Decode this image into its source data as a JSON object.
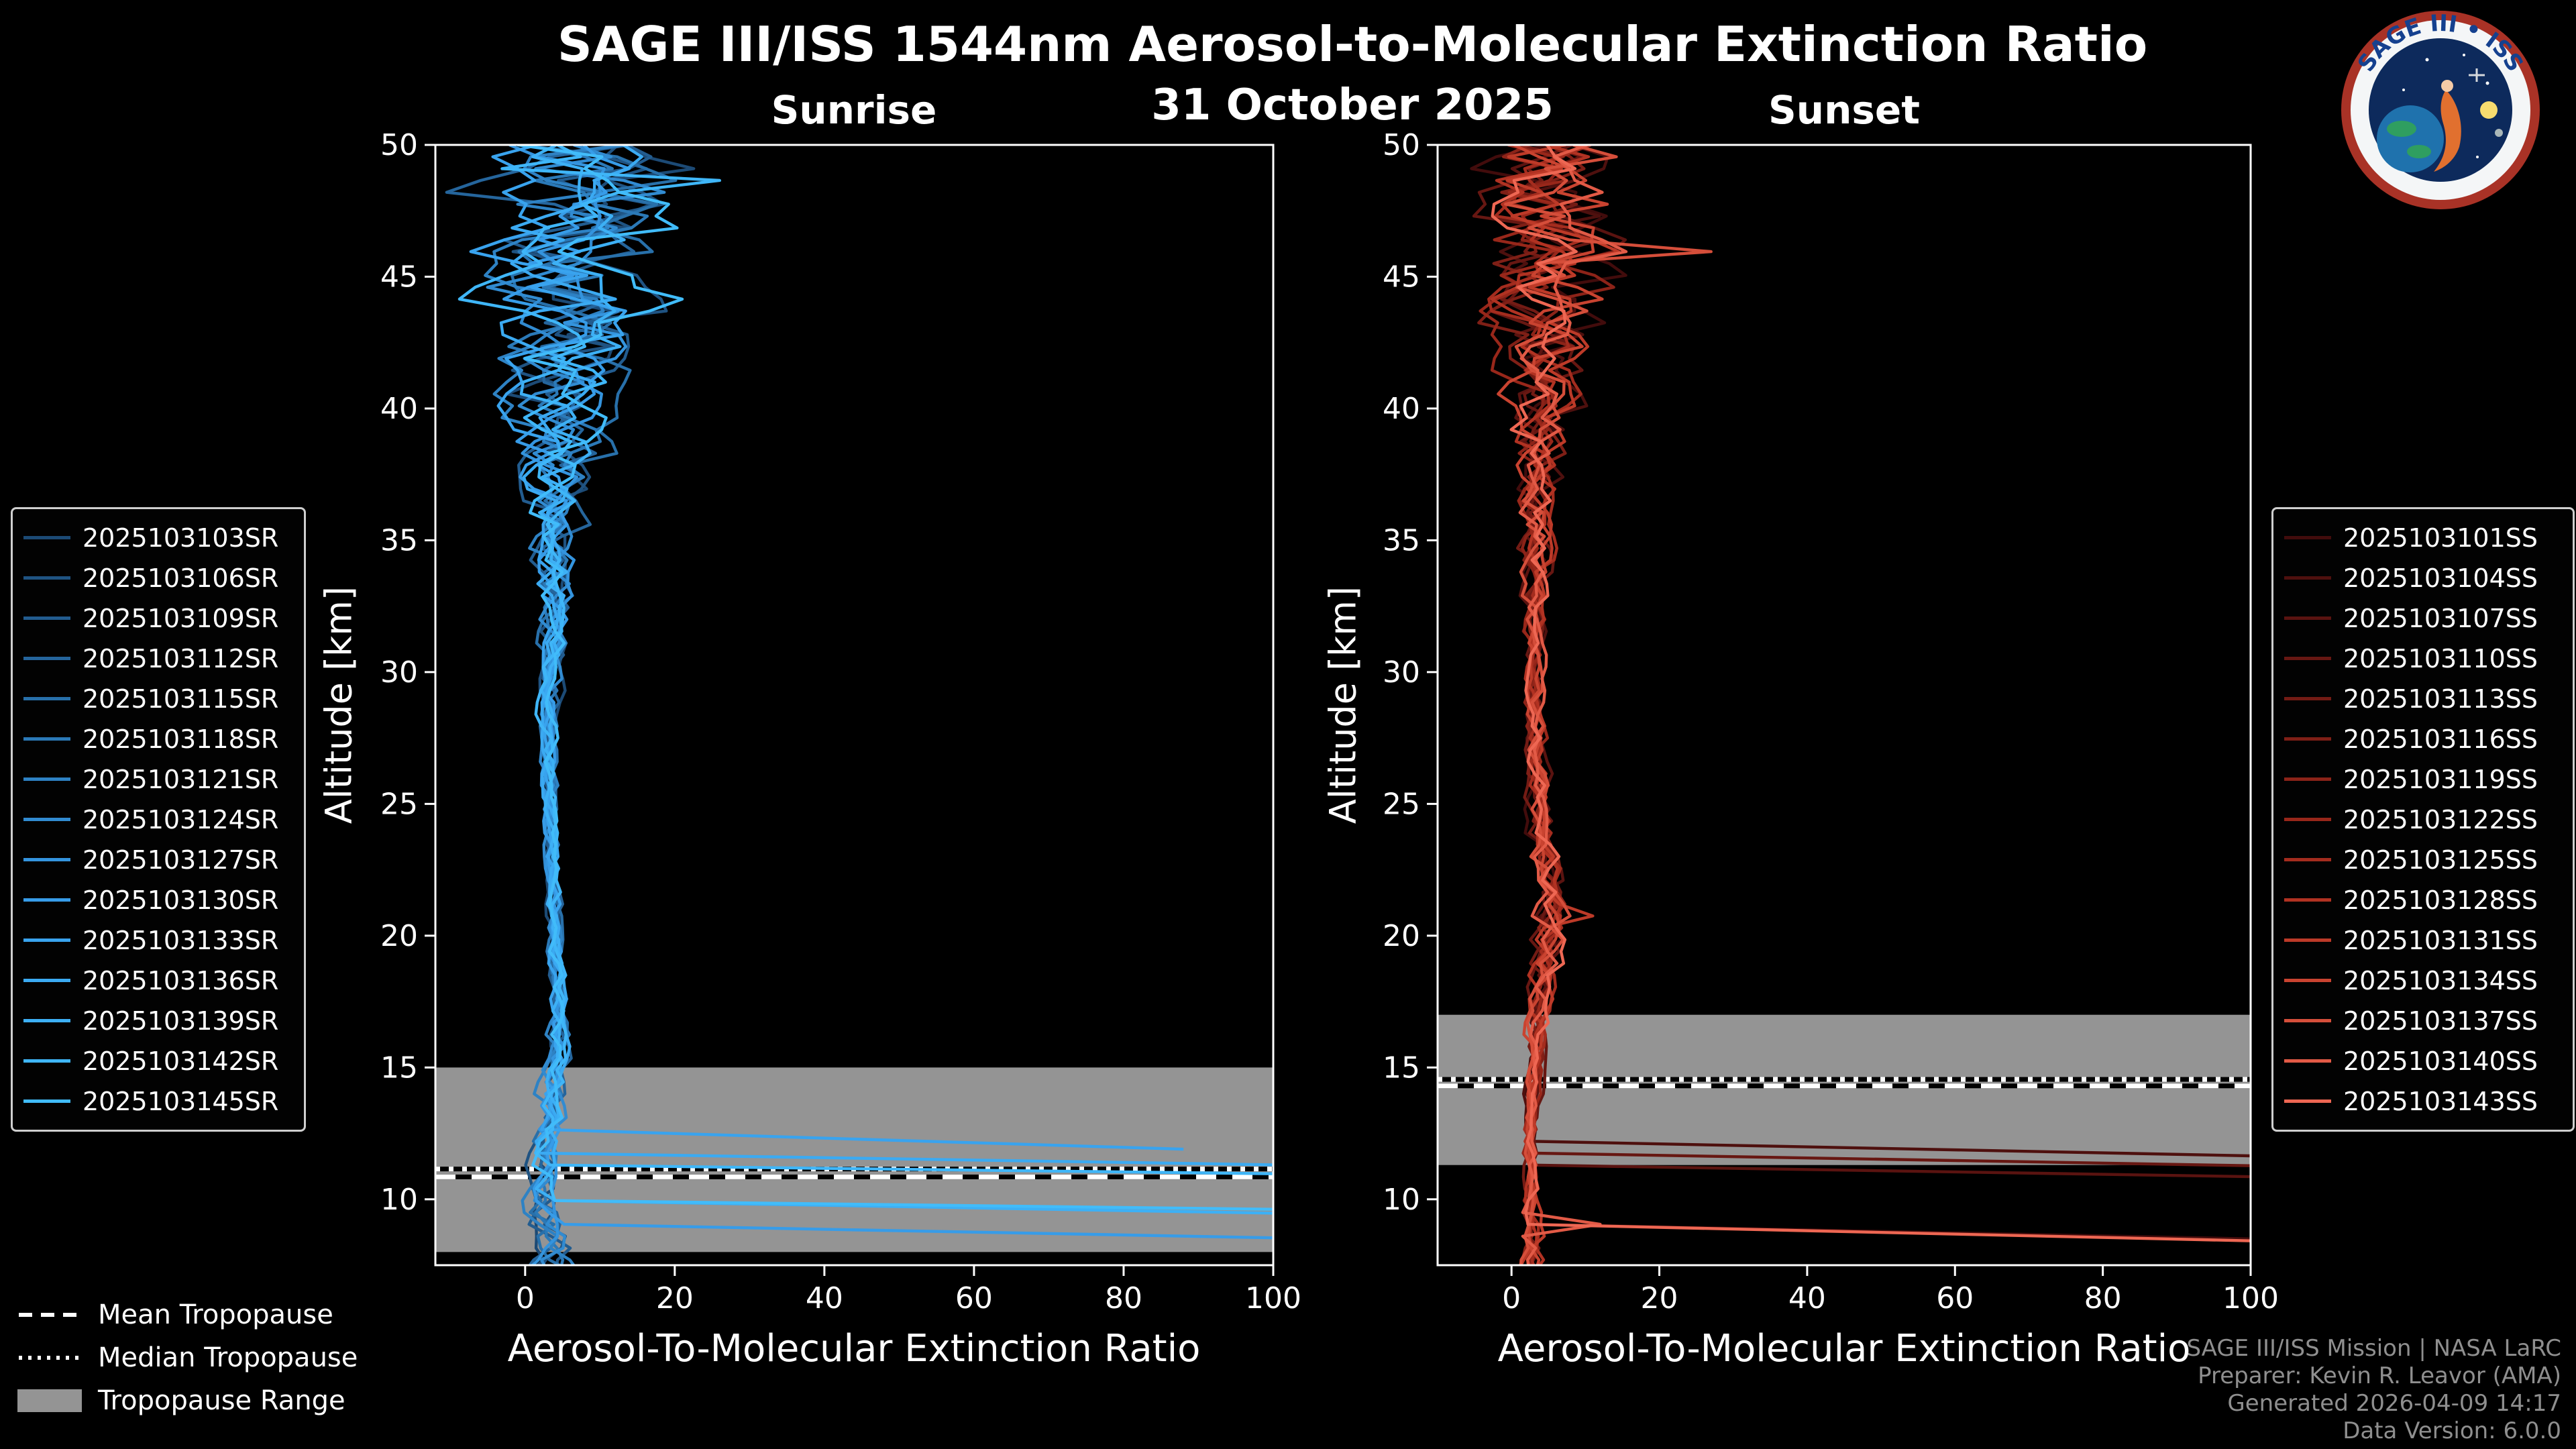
{
  "page": {
    "title": "SAGE III/ISS 1544nm Aerosol-to-Molecular Extinction Ratio",
    "date": "31 October 2025"
  },
  "logo": {
    "arc_text": "SAGE III • ISS"
  },
  "credits": {
    "line1": "SAGE III/ISS Mission | NASA LaRC",
    "line2": "Preparer: Kevin R. Leavor (AMA)",
    "line3": "Generated 2026-04-09 14:17",
    "line4": "Data Version: 6.0.0"
  },
  "tropopause_legend": {
    "mean": "Mean Tropopause",
    "median": "Median Tropopause",
    "range": "Tropopause Range"
  },
  "style": {
    "background": "#000000",
    "text": "#ffffff",
    "frame": "#ffffff"
  },
  "chart_data": [
    {
      "id": "sunrise",
      "type": "line",
      "title": "Sunrise",
      "xlabel": "Aerosol-To-Molecular Extinction Ratio",
      "ylabel": "Altitude [km]",
      "xlim": [
        -12,
        100
      ],
      "ylim": [
        7.5,
        50
      ],
      "xticks": [
        0,
        20,
        40,
        60,
        80,
        100
      ],
      "yticks": [
        10,
        15,
        20,
        25,
        30,
        35,
        40,
        45,
        50
      ],
      "grid": false,
      "legend_position": "outside-left",
      "frame_color": "#ffffff",
      "tropopause": {
        "mean_km": 10.85,
        "median_km": 11.15,
        "range_km": [
          8.0,
          15.0
        ],
        "band_color": "#949494"
      },
      "series": [
        {
          "name": "2025103103SR",
          "color": "#1c4a75"
        },
        {
          "name": "2025103106SR",
          "color": "#1f5382"
        },
        {
          "name": "2025103109SR",
          "color": "#225c8f"
        },
        {
          "name": "2025103112SR",
          "color": "#25659c"
        },
        {
          "name": "2025103115SR",
          "color": "#2870aa"
        },
        {
          "name": "2025103118SR",
          "color": "#2b79b7"
        },
        {
          "name": "2025103121SR",
          "color": "#2e82c4"
        },
        {
          "name": "2025103124SR",
          "color": "#318bd1"
        },
        {
          "name": "2025103127SR",
          "color": "#3494de"
        },
        {
          "name": "2025103130SR",
          "color": "#379ce8"
        },
        {
          "name": "2025103133SR",
          "color": "#39a3ee"
        },
        {
          "name": "2025103136SR",
          "color": "#3baaf2"
        },
        {
          "name": "2025103139SR",
          "color": "#3db0f5"
        },
        {
          "name": "2025103142SR",
          "color": "#3fb6f8"
        },
        {
          "name": "2025103145SR",
          "color": "#41bcfa"
        }
      ],
      "profile": {
        "altitude_km": [
          50,
          48,
          46,
          44,
          42,
          40,
          38,
          36,
          34,
          32,
          30,
          27,
          24,
          21,
          18,
          16,
          14,
          12,
          10,
          8.5,
          7.5
        ],
        "mean_ratio": [
          7,
          6.5,
          6,
          5.5,
          5,
          4.8,
          4.4,
          4.2,
          4,
          3.8,
          3.4,
          3.2,
          3.4,
          3.8,
          4.4,
          4.6,
          3.6,
          2.8,
          2.8,
          3.4,
          4
        ],
        "spread": [
          13,
          12.5,
          11,
          9.5,
          8,
          6,
          4.5,
          3.4,
          2.6,
          2,
          1.4,
          1,
          0.9,
          0.9,
          1.1,
          1.4,
          1.6,
          1.8,
          2.4,
          3,
          3.4
        ]
      },
      "cloud_events": [
        {
          "series_index": 9,
          "altitude_km": 8.35,
          "ratio": 135
        },
        {
          "series_index": 10,
          "altitude_km": 11.9,
          "ratio": 88
        },
        {
          "series_index": 11,
          "altitude_km": 11.15,
          "ratio": 135
        },
        {
          "series_index": 12,
          "altitude_km": 9.3,
          "ratio": 135
        },
        {
          "series_index": 13,
          "altitude_km": 10.85,
          "ratio": 135
        },
        {
          "series_index": 14,
          "altitude_km": 9.5,
          "ratio": 135
        }
      ],
      "spike_events": [
        {
          "series_index": 13,
          "altitude_km": 48.6,
          "ratio": 26
        },
        {
          "series_index": 14,
          "altitude_km": 44.3,
          "ratio": 21
        }
      ],
      "seed": 7
    },
    {
      "id": "sunset",
      "type": "line",
      "title": "Sunset",
      "xlabel": "Aerosol-To-Molecular Extinction Ratio",
      "ylabel": "Altitude [km]",
      "xlim": [
        -10,
        100
      ],
      "ylim": [
        7.5,
        50
      ],
      "xticks": [
        0,
        20,
        40,
        60,
        80,
        100
      ],
      "yticks": [
        10,
        15,
        20,
        25,
        30,
        35,
        40,
        45,
        50
      ],
      "grid": false,
      "legend_position": "outside-right",
      "frame_color": "#ffffff",
      "tropopause": {
        "mean_km": 14.3,
        "median_km": 14.55,
        "range_km": [
          11.3,
          17.0
        ],
        "band_color": "#949494"
      },
      "series": [
        {
          "name": "2025103101SS",
          "color": "#420c0c"
        },
        {
          "name": "2025103104SS",
          "color": "#4e100e"
        },
        {
          "name": "2025103107SS",
          "color": "#5a1310"
        },
        {
          "name": "2025103110SS",
          "color": "#671712"
        },
        {
          "name": "2025103113SS",
          "color": "#731b14"
        },
        {
          "name": "2025103116SS",
          "color": "#7f1f16"
        },
        {
          "name": "2025103119SS",
          "color": "#8c2318"
        },
        {
          "name": "2025103122SS",
          "color": "#98271a"
        },
        {
          "name": "2025103125SS",
          "color": "#a42c1e"
        },
        {
          "name": "2025103128SS",
          "color": "#b13222"
        },
        {
          "name": "2025103131SS",
          "color": "#bd3a28"
        },
        {
          "name": "2025103134SS",
          "color": "#c94330"
        },
        {
          "name": "2025103137SS",
          "color": "#d54e3a"
        },
        {
          "name": "2025103140SS",
          "color": "#e25a46"
        },
        {
          "name": "2025103143SS",
          "color": "#ee6753"
        }
      ],
      "profile": {
        "altitude_km": [
          50,
          48,
          46,
          44,
          42,
          40,
          38,
          36,
          34,
          32,
          30,
          27,
          24,
          22,
          20,
          18,
          16,
          14,
          12,
          10,
          8.5,
          7.5
        ],
        "mean_ratio": [
          6,
          5.5,
          5.5,
          5,
          4.8,
          4.4,
          4,
          3.6,
          3.3,
          3.1,
          3,
          3.3,
          4.2,
          5,
          5,
          4.2,
          3.4,
          2.8,
          2.5,
          2.4,
          2.6,
          2.8
        ],
        "spread": [
          9,
          8.5,
          8,
          7,
          5.5,
          4,
          3,
          2.3,
          1.8,
          1.4,
          1.2,
          1.3,
          1.8,
          2.2,
          2.2,
          1.6,
          1.1,
          0.9,
          0.9,
          1.1,
          1.4,
          1.6
        ]
      },
      "cloud_events": [
        {
          "series_index": 0,
          "altitude_km": 8.3,
          "ratio": 135
        },
        {
          "series_index": 1,
          "altitude_km": 11.45,
          "ratio": 135
        },
        {
          "series_index": 2,
          "altitude_km": 10.7,
          "ratio": 135
        },
        {
          "series_index": 3,
          "altitude_km": 11.2,
          "ratio": 115
        },
        {
          "series_index": 14,
          "altitude_km": 8.2,
          "ratio": 135
        }
      ],
      "spike_events": [
        {
          "series_index": 12,
          "altitude_km": 46.0,
          "ratio": 27
        },
        {
          "series_index": 13,
          "altitude_km": 9.0,
          "ratio": 12
        },
        {
          "series_index": 10,
          "altitude_km": 20.7,
          "ratio": 11
        }
      ],
      "seed": 13
    }
  ]
}
